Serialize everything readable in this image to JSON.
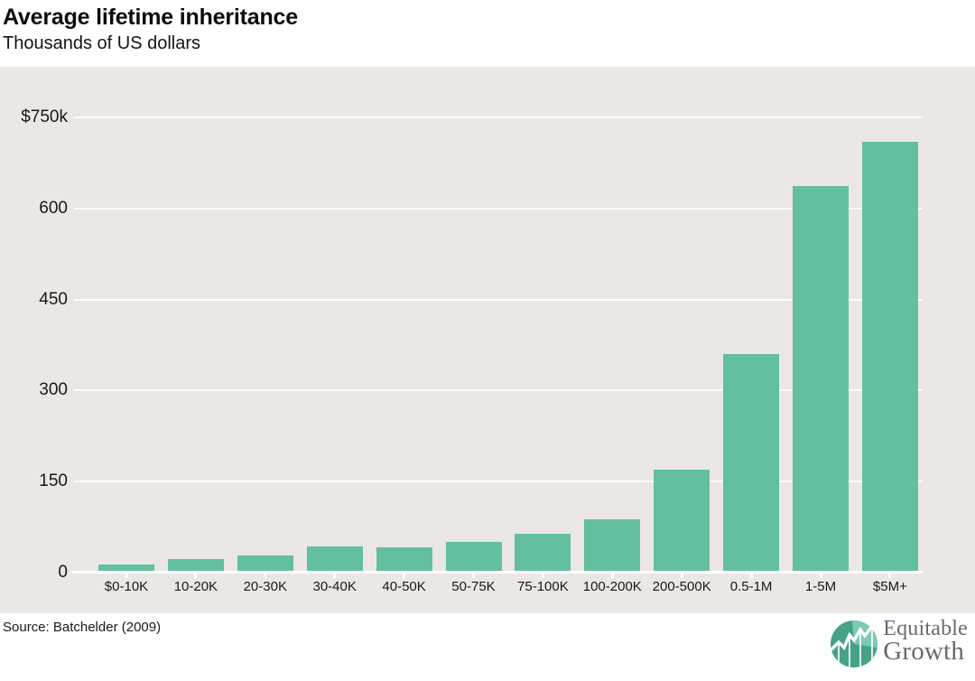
{
  "header": {
    "title": "Average lifetime inheritance",
    "subtitle": "Thousands of US dollars"
  },
  "chart_data": {
    "type": "bar",
    "categories": [
      "$0-10K",
      "10-20K",
      "20-30K",
      "30-40K",
      "40-50K",
      "50-75K",
      "75-100K",
      "100-200K",
      "200-500K",
      "0.5-1M",
      "1-5M",
      "$5M+"
    ],
    "values": [
      14,
      22,
      29,
      43,
      41,
      51,
      64,
      88,
      170,
      360,
      637,
      710
    ],
    "title": "Average lifetime inheritance",
    "xlabel": "",
    "ylabel": "Thousands of US dollars",
    "ylim": [
      0,
      750
    ],
    "yticks": [
      {
        "value": 750,
        "label": "$750k"
      },
      {
        "value": 600,
        "label": "600"
      },
      {
        "value": 450,
        "label": "450"
      },
      {
        "value": 300,
        "label": "300"
      },
      {
        "value": 150,
        "label": "150"
      },
      {
        "value": 0,
        "label": "0"
      }
    ],
    "grid": true,
    "legend": "none",
    "bar_color": "#64bfa1",
    "plot_background": "#eae7e4",
    "gridline_color": "#ffffff"
  },
  "footer": {
    "source": "Source: Batchelder (2009)",
    "logo": {
      "line1": "Equitable",
      "line2": "Growth",
      "icon": "line-chart-circle-icon",
      "circle_dark": "#46a189",
      "circle_light": "#7ccab2",
      "text_color": "#68696c"
    }
  }
}
